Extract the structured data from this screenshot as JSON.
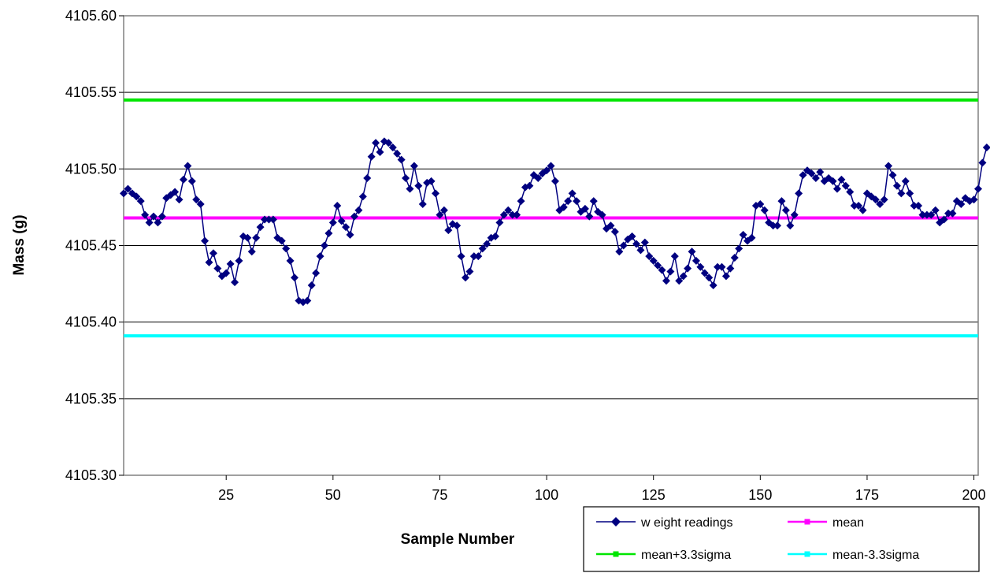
{
  "chart_data": {
    "type": "line",
    "title": "",
    "xlabel": "Sample Number",
    "ylabel": "Mass (g)",
    "xlim": [
      1,
      201
    ],
    "ylim": [
      4105.3,
      4105.6
    ],
    "y_ticks": [
      "4105.30",
      "4105.35",
      "4105.40",
      "4105.45",
      "4105.50",
      "4105.55",
      "4105.60"
    ],
    "x_ticks": [
      "25",
      "50",
      "75",
      "100",
      "125",
      "150",
      "175",
      "200"
    ],
    "y_tick_values": [
      4105.3,
      4105.35,
      4105.4,
      4105.45,
      4105.5,
      4105.55,
      4105.6
    ],
    "x_tick_values": [
      25,
      50,
      75,
      100,
      125,
      150,
      175,
      200
    ],
    "grid": "horizontal",
    "legend_position": "bottom-right",
    "legend": [
      "w eight readings",
      "mean",
      "mean+3.3sigma",
      "mean-3.3sigma"
    ],
    "colors": {
      "weight": "#000080",
      "mean": "#ff00ff",
      "upper": "#00e600",
      "lower": "#00ffff"
    },
    "series": [
      {
        "name": "w eight readings",
        "x_start": 1,
        "y": [
          4105.484,
          4105.487,
          4105.484,
          4105.482,
          4105.479,
          4105.47,
          4105.465,
          4105.469,
          4105.465,
          4105.469,
          4105.481,
          4105.483,
          4105.485,
          4105.48,
          4105.493,
          4105.502,
          4105.492,
          4105.48,
          4105.477,
          4105.453,
          4105.439,
          4105.445,
          4105.435,
          4105.43,
          4105.432,
          4105.438,
          4105.426,
          4105.44,
          4105.456,
          4105.455,
          4105.446,
          4105.455,
          4105.462,
          4105.467,
          4105.467,
          4105.467,
          4105.455,
          4105.453,
          4105.448,
          4105.44,
          4105.429,
          4105.414,
          4105.413,
          4105.414,
          4105.424,
          4105.432,
          4105.443,
          4105.45,
          4105.458,
          4105.465,
          4105.476,
          4105.466,
          4105.462,
          4105.457,
          4105.469,
          4105.473,
          4105.482,
          4105.494,
          4105.508,
          4105.517,
          4105.511,
          4105.518,
          4105.517,
          4105.514,
          4105.51,
          4105.506,
          4105.494,
          4105.487,
          4105.502,
          4105.489,
          4105.477,
          4105.491,
          4105.492,
          4105.484,
          4105.47,
          4105.473,
          4105.46,
          4105.464,
          4105.463,
          4105.443,
          4105.429,
          4105.433,
          4105.443,
          4105.443,
          4105.448,
          4105.451,
          4105.455,
          4105.456,
          4105.465,
          4105.47,
          4105.473,
          4105.47,
          4105.47,
          4105.479,
          4105.488,
          4105.489,
          4105.496,
          4105.494,
          4105.497,
          4105.499,
          4105.502,
          4105.492,
          4105.473,
          4105.475,
          4105.479,
          4105.484,
          4105.479,
          4105.472,
          4105.474,
          4105.469,
          4105.479,
          4105.472,
          4105.47,
          4105.461,
          4105.463,
          4105.459,
          4105.446,
          4105.45,
          4105.454,
          4105.456,
          4105.451,
          4105.447,
          4105.452,
          4105.443,
          4105.44,
          4105.437,
          4105.434,
          4105.427,
          4105.433,
          4105.443,
          4105.427,
          4105.43,
          4105.435,
          4105.446,
          4105.44,
          4105.436,
          4105.432,
          4105.429,
          4105.424,
          4105.436,
          4105.436,
          4105.43,
          4105.435,
          4105.442,
          4105.448,
          4105.457,
          4105.453,
          4105.455,
          4105.476,
          4105.477,
          4105.473,
          4105.465,
          4105.463,
          4105.463,
          4105.479,
          4105.473,
          4105.463,
          4105.47,
          4105.484,
          4105.496,
          4105.499,
          4105.497,
          4105.494,
          4105.498,
          4105.492,
          4105.494,
          4105.492,
          4105.487,
          4105.493,
          4105.489,
          4105.485,
          4105.476,
          4105.476,
          4105.473,
          4105.484,
          4105.482,
          4105.48,
          4105.477,
          4105.48,
          4105.502,
          4105.496,
          4105.489,
          4105.484,
          4105.492,
          4105.484,
          4105.476,
          4105.476,
          4105.47,
          4105.47,
          4105.47,
          4105.473,
          4105.465,
          4105.467,
          4105.471,
          4105.471,
          4105.479,
          4105.477,
          4105.481,
          4105.479,
          4105.48,
          4105.487,
          4105.504,
          4105.514
        ]
      },
      {
        "name": "mean",
        "value": 4105.468
      },
      {
        "name": "mean+3.3sigma",
        "value": 4105.545
      },
      {
        "name": "mean-3.3sigma",
        "value": 4105.391
      }
    ]
  }
}
